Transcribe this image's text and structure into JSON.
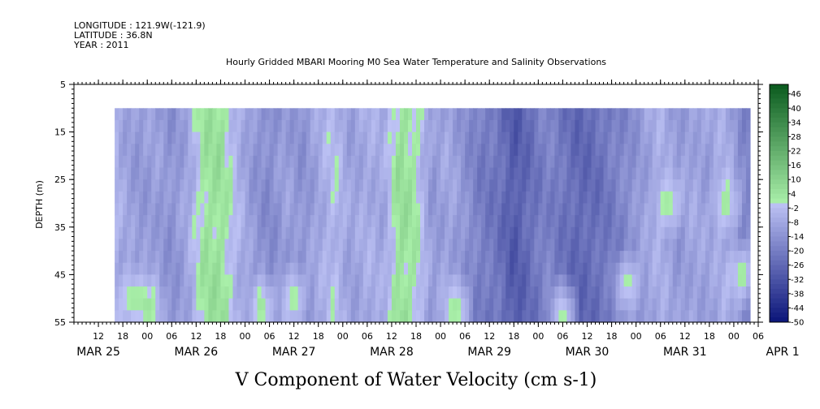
{
  "header": {
    "longitude": "LONGITUDE : 121.9W(-121.9)",
    "latitude": "LATITUDE : 36.8N",
    "year": "YEAR : 2011"
  },
  "chart_data": {
    "type": "heatmap",
    "title": "Hourly Gridded MBARI Mooring M0 Sea Water Temperature and Salinity Observations",
    "xlabel": "V Component of Water Velocity (cm s-1)",
    "ylabel": "DEPTH (m)",
    "ylim": [
      55,
      5
    ],
    "yticks": [
      "5",
      "15",
      "25",
      "35",
      "45",
      "55"
    ],
    "x_range_hours": [
      "2011-03-25 06:00",
      "2011-04-01 12:00"
    ],
    "data_start_hour": 16,
    "data_end_hour": 172,
    "depth_top": 10,
    "depth_bottom": 55,
    "hour_ticks": [
      "12",
      "18",
      "00",
      "06",
      "12",
      "18",
      "00",
      "06",
      "12",
      "18",
      "00",
      "06",
      "12",
      "18",
      "00",
      "06",
      "12",
      "18",
      "00",
      "06",
      "12",
      "18",
      "00",
      "06",
      "12",
      "18",
      "00",
      "06"
    ],
    "date_labels": [
      "MAR 25",
      "MAR 26",
      "MAR 27",
      "MAR 28",
      "MAR 29",
      "MAR 30",
      "MAR 31",
      "APR  1"
    ],
    "colorbar": {
      "min": -50,
      "max": 50,
      "step": 6,
      "labels": [
        "46",
        "40",
        "34",
        "28",
        "22",
        "16",
        "10",
        "4",
        "-2",
        "-8",
        "-14",
        "-20",
        "-26",
        "-32",
        "-38",
        "-44",
        "-50"
      ]
    },
    "velocity_profile": [
      {
        "hour": 16,
        "v": -4
      },
      {
        "hour": 18,
        "v": -8
      },
      {
        "hour": 22,
        "v": -12
      },
      {
        "hour": 26,
        "v": -10
      },
      {
        "hour": 30,
        "v": -14
      },
      {
        "hour": 34,
        "v": -8
      },
      {
        "hour": 38,
        "v": 4
      },
      {
        "hour": 42,
        "v": 5
      },
      {
        "hour": 46,
        "v": -4
      },
      {
        "hour": 50,
        "v": -12
      },
      {
        "hour": 54,
        "v": -16
      },
      {
        "hour": 58,
        "v": -10
      },
      {
        "hour": 62,
        "v": -14
      },
      {
        "hour": 66,
        "v": -8
      },
      {
        "hour": 70,
        "v": -2
      },
      {
        "hour": 74,
        "v": -10
      },
      {
        "hour": 78,
        "v": -6
      },
      {
        "hour": 82,
        "v": -8
      },
      {
        "hour": 86,
        "v": 6
      },
      {
        "hour": 90,
        "v": 2
      },
      {
        "hour": 94,
        "v": -12
      },
      {
        "hour": 98,
        "v": -8
      },
      {
        "hour": 102,
        "v": -14
      },
      {
        "hour": 106,
        "v": -20
      },
      {
        "hour": 110,
        "v": -22
      },
      {
        "hour": 114,
        "v": -30
      },
      {
        "hour": 118,
        "v": -24
      },
      {
        "hour": 122,
        "v": -18
      },
      {
        "hour": 126,
        "v": -22
      },
      {
        "hour": 130,
        "v": -26
      },
      {
        "hour": 134,
        "v": -24
      },
      {
        "hour": 138,
        "v": -20
      },
      {
        "hour": 142,
        "v": -16
      },
      {
        "hour": 146,
        "v": -10
      },
      {
        "hour": 150,
        "v": -6
      },
      {
        "hour": 154,
        "v": -12
      },
      {
        "hour": 158,
        "v": -8
      },
      {
        "hour": 162,
        "v": -10
      },
      {
        "hour": 166,
        "v": -6
      },
      {
        "hour": 170,
        "v": -16
      },
      {
        "hour": 172,
        "v": -18
      }
    ],
    "depth_anomalies": [
      {
        "hour": 20,
        "depth": 50,
        "v": 4
      },
      {
        "hour": 24,
        "depth": 52,
        "v": 6
      },
      {
        "hour": 52,
        "depth": 52,
        "v": 6
      },
      {
        "hour": 60,
        "depth": 50,
        "v": 4
      },
      {
        "hour": 100,
        "depth": 52,
        "v": 4
      },
      {
        "hour": 126,
        "depth": 53,
        "v": 4
      },
      {
        "hour": 142,
        "depth": 47,
        "v": 4
      },
      {
        "hour": 152,
        "depth": 30,
        "v": 4
      },
      {
        "hour": 166,
        "depth": 30,
        "v": 4
      },
      {
        "hour": 170,
        "depth": 45,
        "v": 6
      }
    ]
  }
}
